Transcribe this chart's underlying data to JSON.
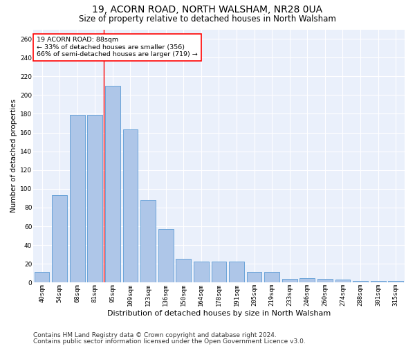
{
  "title1": "19, ACORN ROAD, NORTH WALSHAM, NR28 0UA",
  "title2": "Size of property relative to detached houses in North Walsham",
  "xlabel": "Distribution of detached houses by size in North Walsham",
  "ylabel": "Number of detached properties",
  "categories": [
    "40sqm",
    "54sqm",
    "68sqm",
    "81sqm",
    "95sqm",
    "109sqm",
    "123sqm",
    "136sqm",
    "150sqm",
    "164sqm",
    "178sqm",
    "191sqm",
    "205sqm",
    "219sqm",
    "233sqm",
    "246sqm",
    "260sqm",
    "274sqm",
    "288sqm",
    "301sqm",
    "315sqm"
  ],
  "values": [
    11,
    93,
    179,
    179,
    210,
    163,
    88,
    57,
    25,
    22,
    22,
    22,
    11,
    11,
    4,
    5,
    4,
    3,
    2,
    2,
    2
  ],
  "bar_color": "#aec6e8",
  "bar_edge_color": "#5b9bd5",
  "vline_x": 3.5,
  "annotation_text": "19 ACORN ROAD: 88sqm\n← 33% of detached houses are smaller (356)\n66% of semi-detached houses are larger (719) →",
  "annotation_box_color": "white",
  "annotation_box_edge": "red",
  "footer1": "Contains HM Land Registry data © Crown copyright and database right 2024.",
  "footer2": "Contains public sector information licensed under the Open Government Licence v3.0.",
  "ylim": [
    0,
    270
  ],
  "background_color": "#eaf0fb",
  "grid_color": "white",
  "title1_fontsize": 10,
  "title2_fontsize": 8.5,
  "xlabel_fontsize": 8,
  "ylabel_fontsize": 7.5,
  "tick_fontsize": 6.5,
  "footer_fontsize": 6.5,
  "ytick_step": 20
}
